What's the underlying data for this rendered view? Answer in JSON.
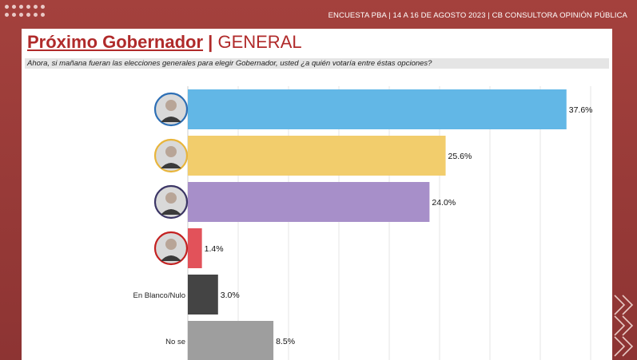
{
  "header": {
    "source": "ENCUESTA PBA | 14 A 16 DE AGOSTO 2023 | CB CONSULTORA OPINIÓN PÚBLICA"
  },
  "title": {
    "main": "Próximo Gobernador",
    "separator": "|",
    "sub": "GENERAL"
  },
  "question": "Ahora, si mañana fueran las elecciones generales para elegir Gobernador, usted ¿a quién votaría entre éstas opciones?",
  "colors": {
    "brand": "#a4413d",
    "title": "#b02a2a"
  },
  "chart_data": {
    "type": "bar",
    "orientation": "horizontal",
    "categories": [
      "",
      "",
      "",
      "",
      "En Blanco/Nulo",
      "No se"
    ],
    "values": [
      37.6,
      25.6,
      24.0,
      1.4,
      3.0,
      8.5
    ],
    "value_labels": [
      "37.6%",
      "25.6%",
      "24.0%",
      "1.4%",
      "3.0%",
      "8.5%"
    ],
    "bar_colors": [
      "#62b7e6",
      "#f2cd6c",
      "#a78fc9",
      "#e2525a",
      "#444444",
      "#9e9e9e"
    ],
    "category_icons": [
      "candidate-photo",
      "candidate-photo",
      "candidate-photo",
      "candidate-photo",
      "",
      ""
    ],
    "icon_ring_colors": [
      "#2d6fb5",
      "#e8b53b",
      "#3c3666",
      "#c42121"
    ],
    "xlim": [
      0,
      40
    ],
    "grid": true,
    "legend": "none"
  }
}
